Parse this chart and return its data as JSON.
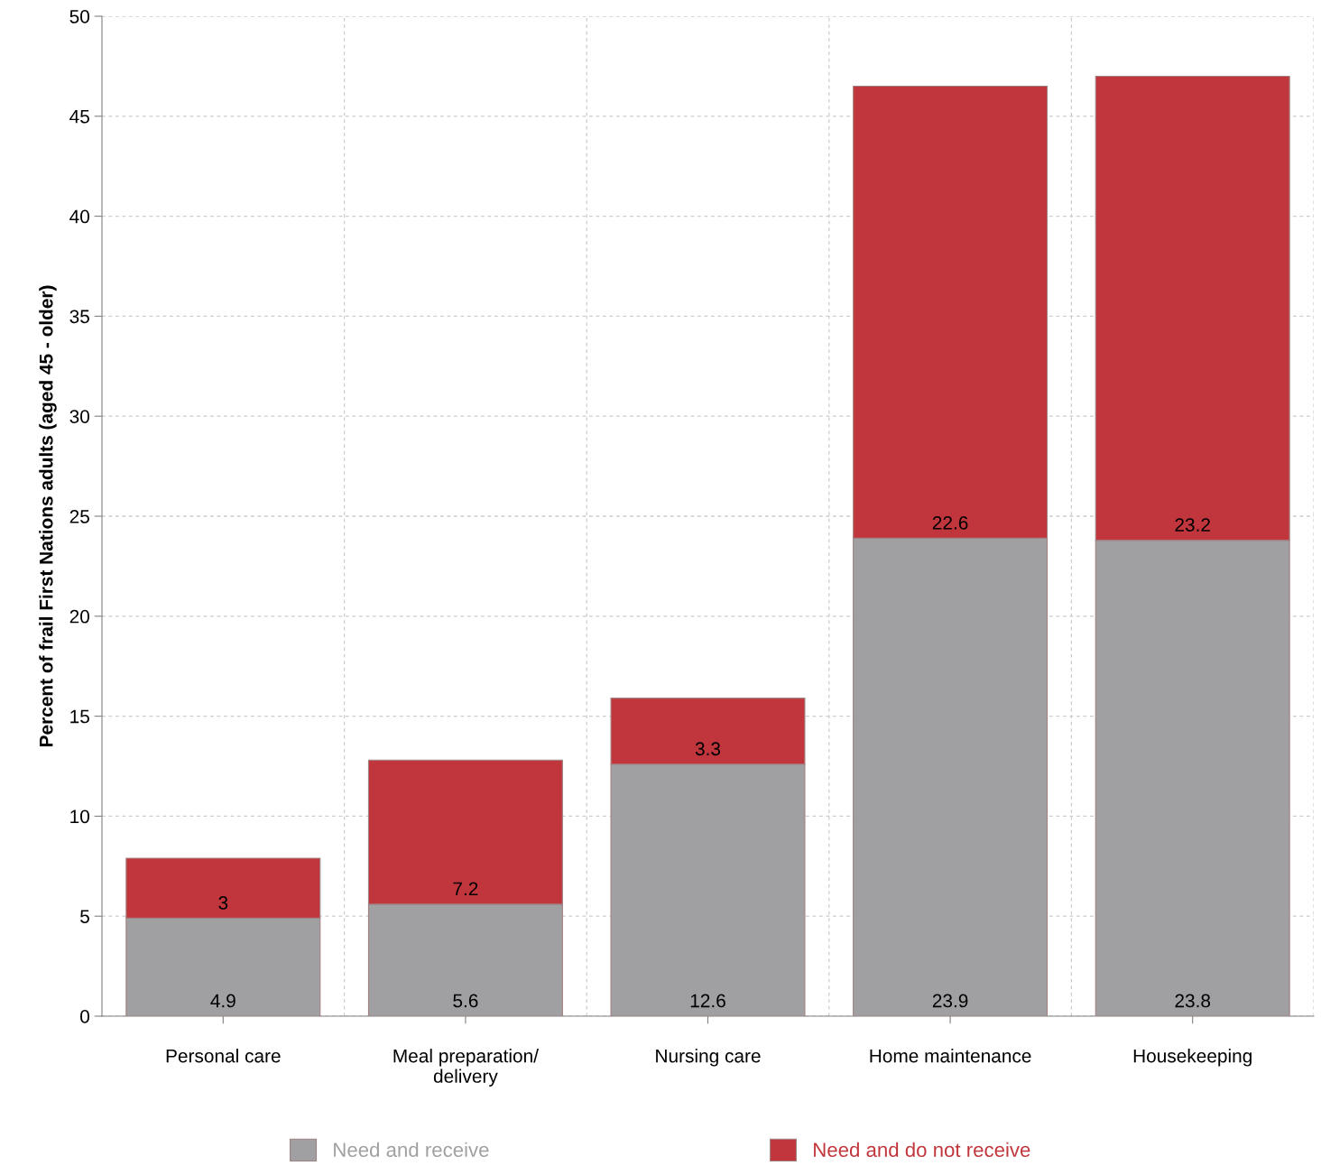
{
  "chart_data": {
    "type": "bar",
    "ylabel": "Percent of frail First Nations adults (aged 45 - older)",
    "categories": [
      "Personal care",
      "Meal preparation/\ndelivery",
      "Nursing care",
      "Home maintenance",
      "Housekeeping"
    ],
    "series": [
      {
        "name": "Need and receive",
        "color": "#a0a0a2",
        "values": [
          4.9,
          5.6,
          12.6,
          23.9,
          23.8
        ]
      },
      {
        "name": "Need and do not receive",
        "color": "#c0363c",
        "values": [
          3,
          7.2,
          3.3,
          22.6,
          23.2
        ]
      }
    ],
    "stacked": true,
    "data_labels": true,
    "ylim": [
      0,
      50
    ],
    "yticks": [
      0,
      5,
      10,
      15,
      20,
      25,
      30,
      35,
      40,
      45,
      50
    ],
    "grid": true,
    "legend": "bottom"
  }
}
